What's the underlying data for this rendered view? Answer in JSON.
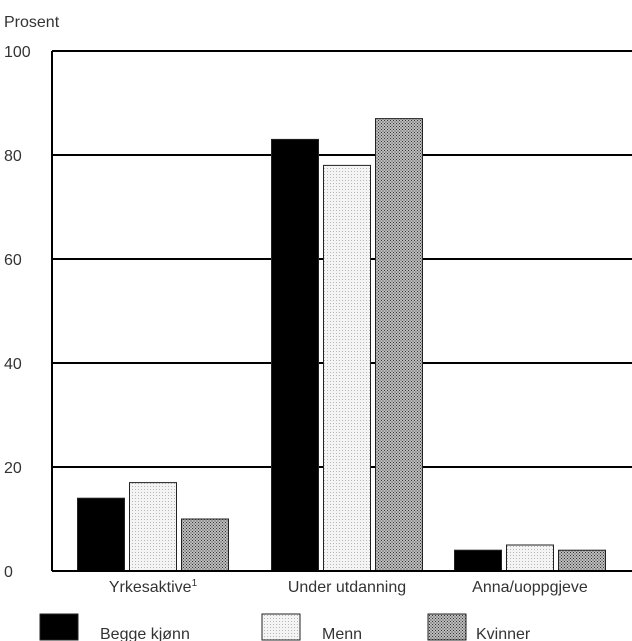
{
  "chart_data": {
    "type": "bar",
    "ylabel": "Prosent",
    "ylim": [
      0,
      100
    ],
    "yticks": [
      "0",
      "20",
      "40",
      "60",
      "80",
      "100"
    ],
    "grid": true,
    "legend_position": "bottom",
    "categories": [
      "Yrkesaktive",
      "Under utdanning",
      "Anna/uoppgjeve"
    ],
    "category_note_marks": [
      "1",
      "",
      ""
    ],
    "series": [
      {
        "name": "Begge kjønn",
        "values": [
          14,
          83,
          4
        ],
        "fill": "#000000"
      },
      {
        "name": "Menn",
        "values": [
          17,
          78,
          5
        ],
        "fill": "#e8e8e8"
      },
      {
        "name": "Kvinner",
        "values": [
          10,
          87,
          4
        ],
        "fill": "#a0a0a0"
      }
    ]
  }
}
